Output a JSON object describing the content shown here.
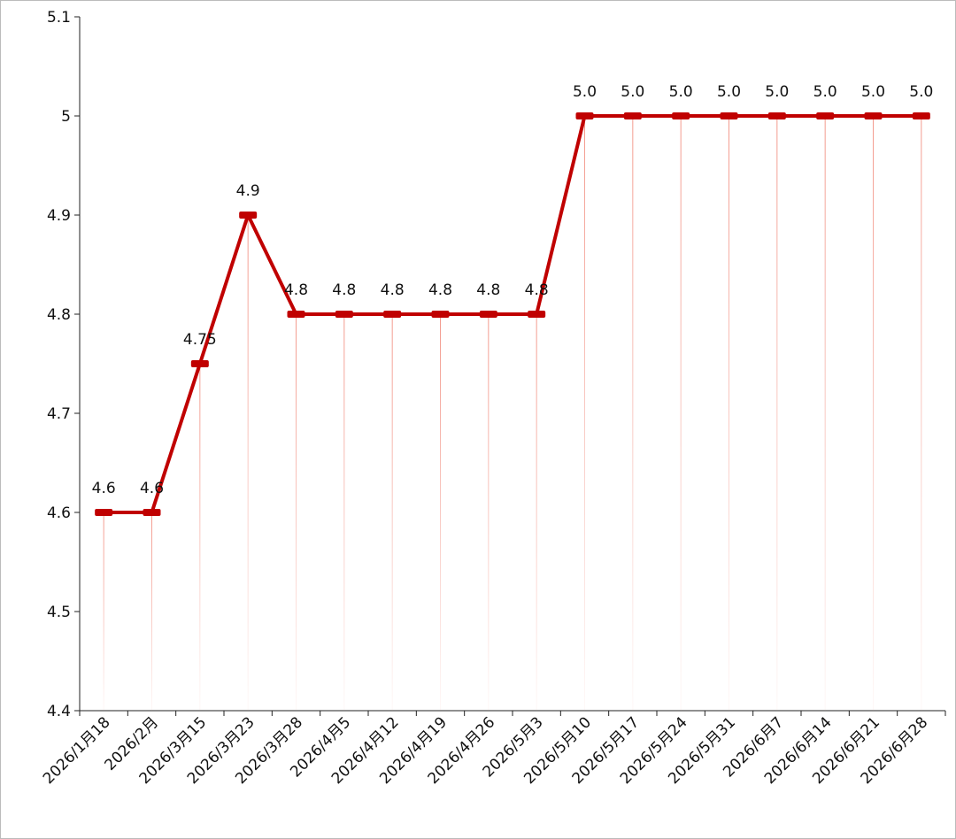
{
  "chart_data": {
    "type": "line",
    "categories": [
      "2026/1月18",
      "2026/2月",
      "2026/3月15",
      "2026/3月23",
      "2026/3月28",
      "2026/4月5",
      "2026/4月12",
      "2026/4月19",
      "2026/4月26",
      "2026/5月3",
      "2026/5月10",
      "2026/5月17",
      "2026/5月24",
      "2026/5月31",
      "2026/6月7",
      "2026/6月14",
      "2026/6月21",
      "2026/6月28"
    ],
    "values": [
      4.6,
      4.6,
      4.75,
      4.9,
      4.8,
      4.8,
      4.8,
      4.8,
      4.8,
      4.8,
      5.0,
      5.0,
      5.0,
      5.0,
      5.0,
      5.0,
      5.0,
      5.0
    ],
    "value_labels": [
      "4.6",
      "4.6",
      "4.75",
      "4.9",
      "4.8",
      "4.8",
      "4.8",
      "4.8",
      "4.8",
      "4.8",
      "5.0",
      "5.0",
      "5.0",
      "5.0",
      "5.0",
      "5.0",
      "5.0",
      "5.0"
    ],
    "color": "#c00000",
    "ylim": [
      4.4,
      5.1
    ],
    "yticks": [
      4.4,
      4.5,
      4.6,
      4.7,
      4.8,
      4.9,
      5,
      5.1
    ],
    "drop_lines": true
  }
}
